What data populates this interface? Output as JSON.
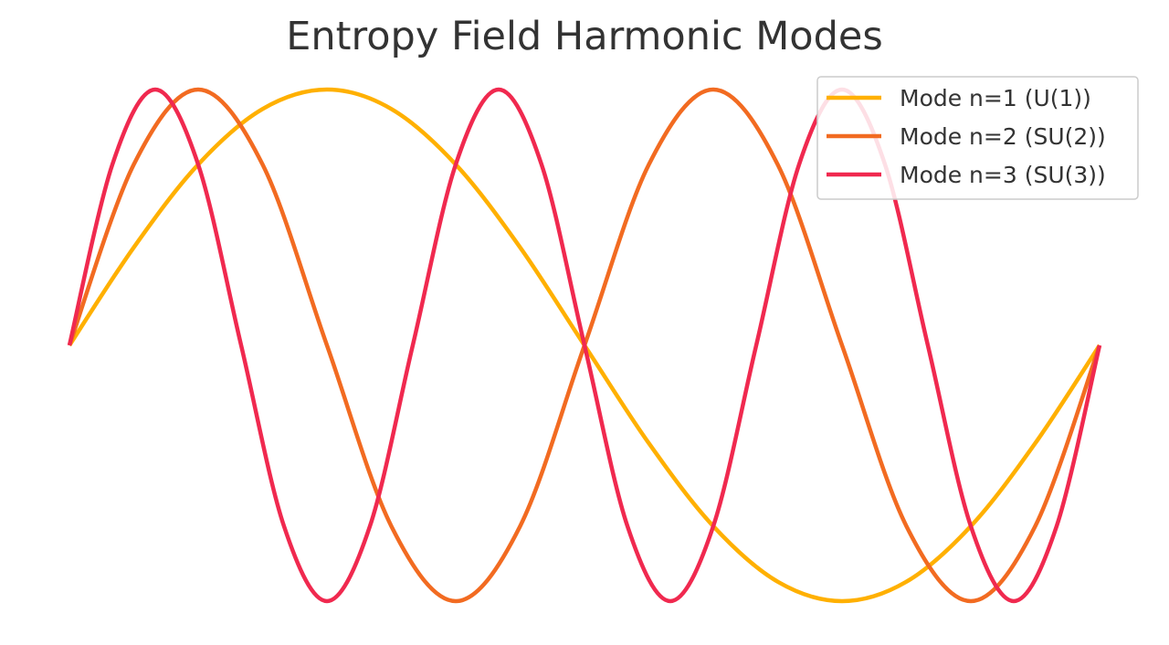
{
  "chart_data": {
    "type": "line",
    "title": "Entropy Field Harmonic Modes",
    "xlabel": "",
    "ylabel": "",
    "xlim": [
      0,
      1
    ],
    "ylim": [
      -1,
      1
    ],
    "grid": false,
    "axes_visible": false,
    "legend_position": "top-right",
    "series": [
      {
        "name": "Mode n=1 (U(1))",
        "color": "#FFB000",
        "x": [
          0,
          0.0625,
          0.125,
          0.1875,
          0.25,
          0.3125,
          0.375,
          0.4375,
          0.5,
          0.5625,
          0.625,
          0.6875,
          0.75,
          0.8125,
          0.875,
          0.9375,
          1
        ],
        "y": [
          0,
          0.383,
          0.707,
          0.924,
          1,
          0.924,
          0.707,
          0.383,
          0,
          -0.383,
          -0.707,
          -0.924,
          -1,
          -0.924,
          -0.707,
          -0.383,
          0
        ]
      },
      {
        "name": "Mode n=2 (SU(2))",
        "color": "#F26B21",
        "x": [
          0,
          0.0625,
          0.125,
          0.1875,
          0.25,
          0.3125,
          0.375,
          0.4375,
          0.5,
          0.5625,
          0.625,
          0.6875,
          0.75,
          0.8125,
          0.875,
          0.9375,
          1
        ],
        "y": [
          0,
          0.707,
          1,
          0.707,
          0,
          -0.707,
          -1,
          -0.707,
          0,
          0.707,
          1,
          0.707,
          0,
          -0.707,
          -1,
          -0.707,
          0
        ]
      },
      {
        "name": "Mode n=3 (SU(3))",
        "color": "#F0294F",
        "x": [
          0,
          0.0417,
          0.0833,
          0.125,
          0.1667,
          0.2083,
          0.25,
          0.2917,
          0.3333,
          0.375,
          0.4167,
          0.4583,
          0.5,
          0.5417,
          0.5833,
          0.625,
          0.6667,
          0.7083,
          0.75,
          0.7917,
          0.8333,
          0.875,
          0.9167,
          0.9583,
          1
        ],
        "y": [
          0,
          0.707,
          1,
          0.707,
          0,
          -0.707,
          -1,
          -0.707,
          0,
          0.707,
          1,
          0.707,
          0,
          -0.707,
          -1,
          -0.707,
          0,
          0.707,
          1,
          0.707,
          0,
          -0.707,
          -1,
          -0.707,
          0
        ]
      }
    ]
  }
}
